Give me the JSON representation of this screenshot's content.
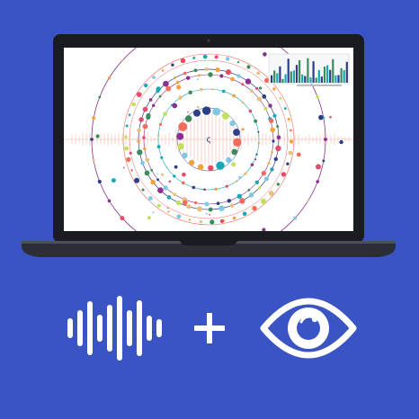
{
  "colors": {
    "background": "#3a54c4",
    "laptop_bezel": "#1b1c21",
    "laptop_base": "#2b2e36",
    "screen": "#ffffff",
    "icon_white": "#ffffff",
    "dot_palette": [
      "#1aa7b8",
      "#e84b6a",
      "#2d3e88",
      "#f2a23a",
      "#7ec8e3",
      "#8a2f8f",
      "#f26b5b",
      "#3b8c5a",
      "#c2e05a",
      "#e5c07b"
    ]
  },
  "laptop": {
    "screen_content": "sound-visualization-rings",
    "inset_chart": "spectrum-bars"
  },
  "icons": {
    "left": "sound-wave-icon",
    "middle": "plus-icon",
    "right": "eye-icon"
  }
}
